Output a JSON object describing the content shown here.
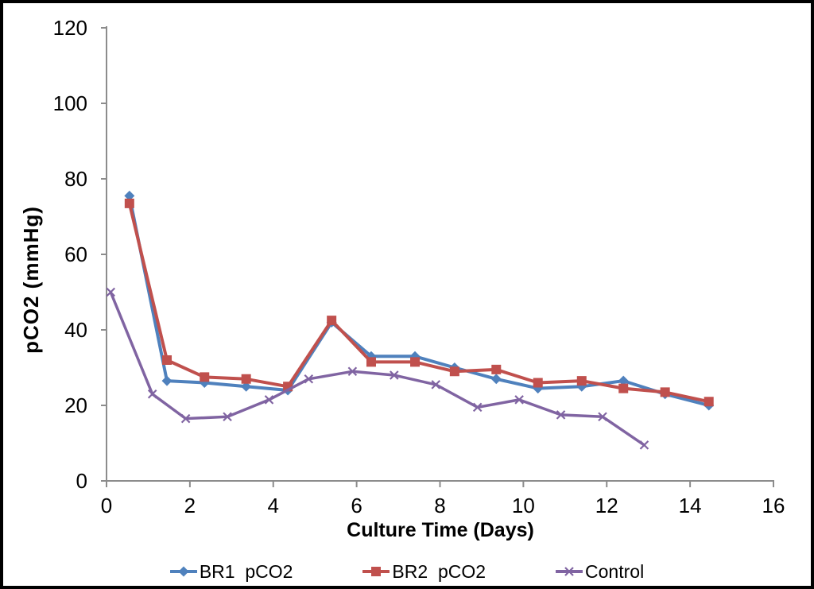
{
  "chart_data": {
    "type": "line",
    "title": "",
    "xlabel": "Culture Time (Days)",
    "ylabel": "pCO2 (mmHg)",
    "xlim": [
      0,
      16
    ],
    "ylim": [
      0,
      120
    ],
    "x_ticks": [
      0,
      2,
      4,
      6,
      8,
      10,
      12,
      14,
      16
    ],
    "y_ticks": [
      0,
      20,
      40,
      60,
      80,
      100,
      120
    ],
    "grid": false,
    "legend_position": "bottom",
    "background_color": "#FFFFFF",
    "border_color": "#000000",
    "axis_color": "#8C8C8C",
    "text_color": "#000000",
    "series": [
      {
        "name": "BR1  pCO2",
        "color": "#4F81BD",
        "marker": "diamond",
        "x": [
          0.55,
          1.45,
          2.35,
          3.35,
          4.35,
          5.4,
          6.35,
          7.4,
          8.35,
          9.35,
          10.35,
          11.4,
          12.4,
          13.4,
          14.45
        ],
        "y": [
          75.5,
          26.5,
          26,
          25,
          24,
          42,
          33,
          33,
          30,
          27,
          24.5,
          25,
          26.5,
          23,
          20
        ]
      },
      {
        "name": "BR2  pCO2",
        "color": "#C0504D",
        "marker": "square",
        "x": [
          0.55,
          1.45,
          2.35,
          3.35,
          4.35,
          5.4,
          6.35,
          7.4,
          8.35,
          9.35,
          10.35,
          11.4,
          12.4,
          13.4,
          14.45
        ],
        "y": [
          73.5,
          32,
          27.5,
          27,
          25,
          42.5,
          31.5,
          31.5,
          29,
          29.5,
          26,
          26.5,
          24.5,
          23.5,
          21
        ]
      },
      {
        "name": "Control",
        "color": "#8064A2",
        "marker": "x",
        "x": [
          0.1,
          1.1,
          1.9,
          2.9,
          3.9,
          4.85,
          5.9,
          6.9,
          7.9,
          8.9,
          9.9,
          10.9,
          11.9,
          12.9
        ],
        "y": [
          50,
          23,
          16.5,
          17,
          21.5,
          27,
          29,
          28,
          25.5,
          19.5,
          21.5,
          17.5,
          17,
          9.5
        ]
      }
    ]
  }
}
